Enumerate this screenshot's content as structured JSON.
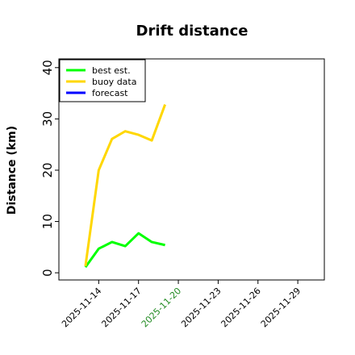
{
  "chart_data": {
    "type": "line",
    "title": "Drift distance",
    "y_label": "Distance (km)",
    "x": [
      "2025-11-13",
      "2025-11-14",
      "2025-11-15",
      "2025-11-16",
      "2025-11-17",
      "2025-11-18",
      "2025-11-19"
    ],
    "series": [
      {
        "name": "best est.",
        "color": "#00ff00",
        "values": [
          1.1,
          4.7,
          6.0,
          5.2,
          7.7,
          6.0,
          5.4
        ]
      },
      {
        "name": "buoy data",
        "color": "#ffd700",
        "values": [
          1.3,
          20.0,
          26.1,
          27.6,
          26.9,
          25.8,
          32.8
        ]
      },
      {
        "name": "forecast",
        "color": "#0000ff",
        "values": [
          null,
          null,
          null,
          null,
          null,
          null,
          null
        ]
      }
    ],
    "xlim": [
      "2025-11-11",
      "2025-12-01"
    ],
    "xticks": [
      "2025-11-14",
      "2025-11-17",
      "2025-11-20",
      "2025-11-23",
      "2025-11-26",
      "2025-11-29"
    ],
    "xtick_colors": [
      "#000000",
      "#000000",
      "#228b22",
      "#000000",
      "#000000",
      "#000000"
    ],
    "ylim": [
      -1.4,
      41.7
    ],
    "yticks": [
      0,
      10,
      20,
      30,
      40
    ],
    "grid": false,
    "legend": "upper left"
  }
}
